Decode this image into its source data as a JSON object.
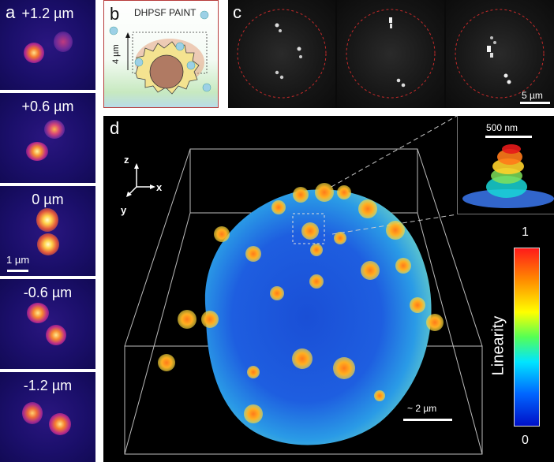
{
  "panel_a": {
    "letter": "a",
    "labels": [
      "+1.2 µm",
      "+0.6 µm",
      "0 µm",
      "-0.6 µm",
      "-1.2 µm"
    ],
    "scale_bar_label": "1 µm"
  },
  "panel_b": {
    "letter": "b",
    "title": "DHPSF PAINT",
    "dimension_label": "4 µm"
  },
  "panel_c": {
    "letter": "c",
    "scale_bar_label": "5 µm"
  },
  "panel_d": {
    "letter": "d",
    "axes": {
      "x": "x",
      "y": "y",
      "z": "z"
    },
    "scale_bar_label": "~ 2 µm",
    "inset_scale_bar_label": "500 nm",
    "colorbar": {
      "title": "Linearity",
      "max": "1",
      "min": "0"
    }
  }
}
